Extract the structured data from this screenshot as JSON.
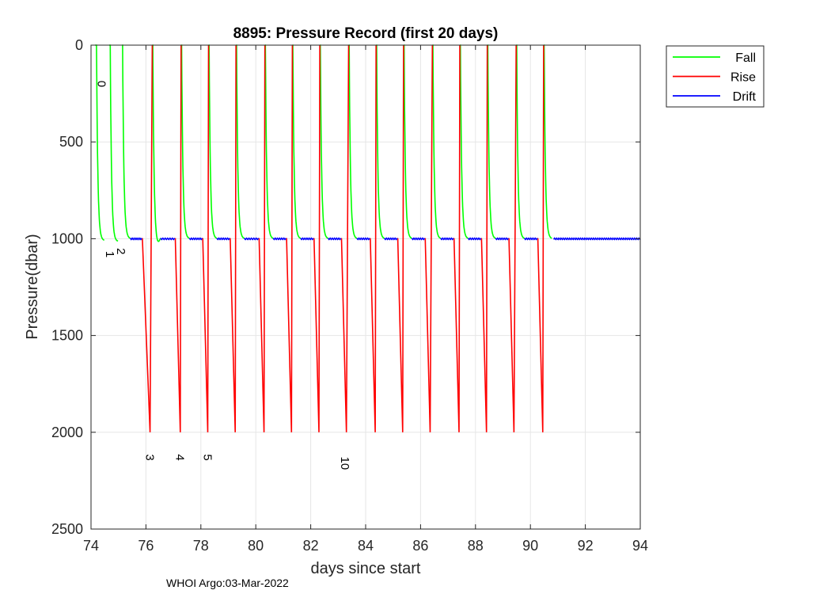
{
  "chart_data": {
    "type": "line",
    "title": "8895: Pressure Record (first 20 days)",
    "xlabel": "days since start",
    "ylabel": "Pressure(dbar)",
    "xlim": [
      74,
      94
    ],
    "ylim": [
      0,
      2500
    ],
    "y_reversed": true,
    "grid": true,
    "xticks": [
      74,
      76,
      78,
      80,
      82,
      84,
      86,
      88,
      90,
      92,
      94
    ],
    "yticks": [
      0,
      500,
      1000,
      1500,
      2000,
      2500
    ],
    "legend_position": "outside-top-right",
    "series": [
      {
        "name": "Fall",
        "color": "#00ff00"
      },
      {
        "name": "Rise",
        "color": "#ff0000"
      },
      {
        "name": "Drift",
        "color": "#0000ff"
      }
    ],
    "cycles": [
      {
        "fall": 74.2,
        "surf_prev": 74.15,
        "drift_end": null,
        "bottom": null,
        "drift_depth": 1010
      },
      {
        "fall": 74.7,
        "surf_prev": 74.66,
        "drift_end": null,
        "bottom": null,
        "drift_depth": 1015
      },
      {
        "fall": 75.15,
        "surf_prev": 75.13,
        "drift_end": null,
        "bottom": null,
        "drift_depth": 1000
      },
      {
        "fall": 76.25,
        "surf_prev": 76.23,
        "drift_end": 75.85,
        "bottom": 76.15,
        "drift_depth": 1000
      },
      {
        "fall": 77.3,
        "surf_prev": 77.28,
        "drift_end": 77.05,
        "bottom": 77.25,
        "drift_depth": 1000
      },
      {
        "fall": 78.3,
        "surf_prev": 78.28,
        "drift_end": 78.05,
        "bottom": 78.25,
        "drift_depth": 1000
      },
      {
        "fall": 79.3,
        "surf_prev": 79.28,
        "drift_end": 79.05,
        "bottom": 79.25,
        "drift_depth": 1000
      },
      {
        "fall": 80.35,
        "surf_prev": 80.33,
        "drift_end": 80.1,
        "bottom": 80.3,
        "drift_depth": 1000
      },
      {
        "fall": 81.35,
        "surf_prev": 81.33,
        "drift_end": 81.1,
        "bottom": 81.3,
        "drift_depth": 1000
      },
      {
        "fall": 82.35,
        "surf_prev": 82.33,
        "drift_end": 82.1,
        "bottom": 82.3,
        "drift_depth": 1000
      },
      {
        "fall": 83.4,
        "surf_prev": 83.38,
        "drift_end": 83.1,
        "bottom": 83.3,
        "drift_depth": 1000
      },
      {
        "fall": 84.4,
        "surf_prev": 84.38,
        "drift_end": 84.15,
        "bottom": 84.35,
        "drift_depth": 1000
      },
      {
        "fall": 85.4,
        "surf_prev": 85.38,
        "drift_end": 85.15,
        "bottom": 85.35,
        "drift_depth": 1000
      },
      {
        "fall": 86.45,
        "surf_prev": 86.43,
        "drift_end": 86.15,
        "bottom": 86.35,
        "drift_depth": 1000
      },
      {
        "fall": 87.45,
        "surf_prev": 87.43,
        "drift_end": 87.2,
        "bottom": 87.4,
        "drift_depth": 1000
      },
      {
        "fall": 88.45,
        "surf_prev": 88.43,
        "drift_end": 88.2,
        "bottom": 88.4,
        "drift_depth": 1000
      },
      {
        "fall": 89.5,
        "surf_prev": 89.48,
        "drift_end": 89.2,
        "bottom": 89.4,
        "drift_depth": 1000
      },
      {
        "fall": 90.5,
        "surf_prev": 90.48,
        "drift_end": 90.25,
        "bottom": 90.45,
        "drift_depth": 1000
      }
    ],
    "drift_final": {
      "start": 90.85,
      "end": 94.0,
      "depth": 1000
    },
    "annotations": [
      {
        "text": "0",
        "x": 74.25,
        "y": 200,
        "rotate": 90
      },
      {
        "text": "1",
        "x": 74.55,
        "y": 1080,
        "rotate": 90
      },
      {
        "text": "2",
        "x": 74.95,
        "y": 1065,
        "rotate": 90
      },
      {
        "text": "3",
        "x": 76.0,
        "y": 2130,
        "rotate": 90
      },
      {
        "text": "4",
        "x": 77.1,
        "y": 2130,
        "rotate": 90
      },
      {
        "text": "5",
        "x": 78.1,
        "y": 2130,
        "rotate": 90
      },
      {
        "text": "10",
        "x": 83.1,
        "y": 2160,
        "rotate": 90
      }
    ]
  },
  "footer": "WHOI Argo:03-Mar-2022"
}
